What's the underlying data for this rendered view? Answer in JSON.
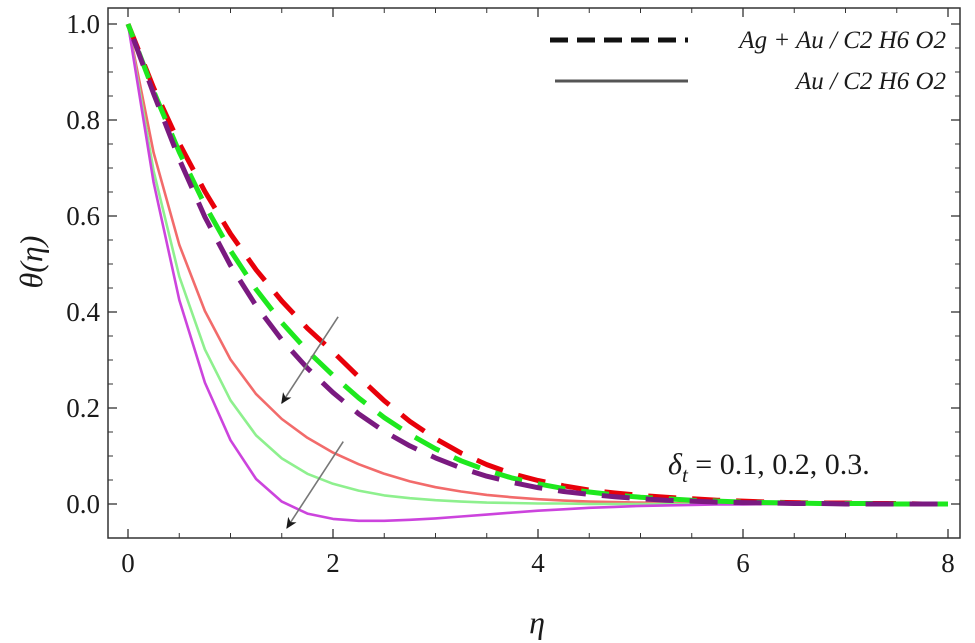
{
  "chart_data": {
    "type": "line",
    "title": "",
    "xlabel": "η",
    "ylabel": "θ(η)",
    "xlim": [
      0,
      8
    ],
    "ylim": [
      -0.06,
      1.04
    ],
    "x_ticks": [
      0,
      2,
      4,
      6,
      8
    ],
    "x_tick_labels": [
      "0",
      "2",
      "4",
      "6",
      "8"
    ],
    "y_ticks": [
      0.0,
      0.2,
      0.4,
      0.6,
      0.8,
      1.0
    ],
    "y_tick_labels": [
      "0.0",
      "0.2",
      "0.4",
      "0.6",
      "0.8",
      "1.0"
    ],
    "grid": false,
    "legend": {
      "placement": "top-right",
      "entries": [
        {
          "label": "Ag + Au / C2 H6 O2",
          "style": "dashed"
        },
        {
          "label": "Au / C2 H6 O2",
          "style": "solid"
        }
      ]
    },
    "annotation": {
      "text_symbol": "δ",
      "text_sub": "t",
      "text_rest": " = 0.1, 0.2, 0.3.",
      "arrows": [
        {
          "from": [
            2.05,
            0.39
          ],
          "to": [
            1.5,
            0.21
          ]
        },
        {
          "from": [
            2.1,
            0.13
          ],
          "to": [
            1.55,
            -0.05
          ]
        }
      ]
    },
    "x": [
      0,
      0.25,
      0.5,
      0.75,
      1.0,
      1.25,
      1.5,
      1.75,
      2.0,
      2.25,
      2.5,
      2.75,
      3.0,
      3.25,
      3.5,
      3.75,
      4.0,
      4.25,
      4.5,
      4.75,
      5.0,
      5.25,
      5.5,
      5.75,
      6.0,
      6.25,
      6.5,
      6.75,
      7.0,
      7.25,
      7.5,
      7.75,
      8.0
    ],
    "series": [
      {
        "style": "dashed",
        "color": "#e8000a",
        "values": [
          1.0,
          0.867,
          0.751,
          0.651,
          0.563,
          0.488,
          0.423,
          0.366,
          0.317,
          0.265,
          0.215,
          0.172,
          0.136,
          0.106,
          0.082,
          0.063,
          0.049,
          0.038,
          0.029,
          0.023,
          0.018,
          0.014,
          0.011,
          0.008,
          0.006,
          0.004,
          0.003,
          0.002,
          0.002,
          0.001,
          0.001,
          0.0,
          0.0
        ]
      },
      {
        "style": "dashed",
        "color": "#1ee81e",
        "values": [
          1.0,
          0.86,
          0.733,
          0.623,
          0.528,
          0.447,
          0.378,
          0.319,
          0.268,
          0.221,
          0.18,
          0.145,
          0.115,
          0.09,
          0.07,
          0.054,
          0.042,
          0.032,
          0.025,
          0.019,
          0.014,
          0.011,
          0.008,
          0.006,
          0.004,
          0.003,
          0.002,
          0.001,
          0.001,
          0.001,
          0.0,
          0.0,
          0.0
        ]
      },
      {
        "style": "dashed",
        "color": "#7a1a80",
        "values": [
          1.0,
          0.855,
          0.718,
          0.598,
          0.497,
          0.413,
          0.342,
          0.283,
          0.232,
          0.188,
          0.151,
          0.121,
          0.096,
          0.075,
          0.058,
          0.045,
          0.034,
          0.026,
          0.02,
          0.015,
          0.011,
          0.008,
          0.006,
          0.004,
          0.003,
          0.002,
          0.001,
          0.001,
          0.0,
          0.0,
          0.0,
          0.0,
          0.0
        ]
      },
      {
        "style": "solid",
        "color": "#f26b6b",
        "values": [
          1.0,
          0.732,
          0.54,
          0.402,
          0.301,
          0.229,
          0.177,
          0.138,
          0.107,
          0.083,
          0.063,
          0.047,
          0.035,
          0.026,
          0.019,
          0.014,
          0.01,
          0.007,
          0.005,
          0.004,
          0.003,
          0.002,
          0.001,
          0.001,
          0.001,
          0.0,
          0.0,
          0.0,
          0.0,
          0.0,
          0.0,
          0.0,
          0.0
        ]
      },
      {
        "style": "solid",
        "color": "#8ef08e",
        "values": [
          1.0,
          0.694,
          0.474,
          0.322,
          0.216,
          0.143,
          0.095,
          0.063,
          0.042,
          0.028,
          0.018,
          0.012,
          0.008,
          0.005,
          0.003,
          0.002,
          0.001,
          0.001,
          0.0,
          0.0,
          0.0,
          0.0,
          0.0,
          0.0,
          0.0,
          0.0,
          0.0,
          0.0,
          0.0,
          0.0,
          0.0,
          0.0,
          0.0
        ]
      },
      {
        "style": "solid",
        "color": "#cc44dd",
        "values": [
          1.0,
          0.67,
          0.425,
          0.253,
          0.133,
          0.052,
          0.005,
          -0.02,
          -0.031,
          -0.035,
          -0.035,
          -0.033,
          -0.03,
          -0.026,
          -0.022,
          -0.018,
          -0.014,
          -0.011,
          -0.008,
          -0.006,
          -0.004,
          -0.003,
          -0.002,
          -0.001,
          -0.001,
          0.0,
          0.0,
          0.0,
          0.0,
          0.0,
          0.0,
          0.0,
          0.0
        ]
      }
    ]
  }
}
